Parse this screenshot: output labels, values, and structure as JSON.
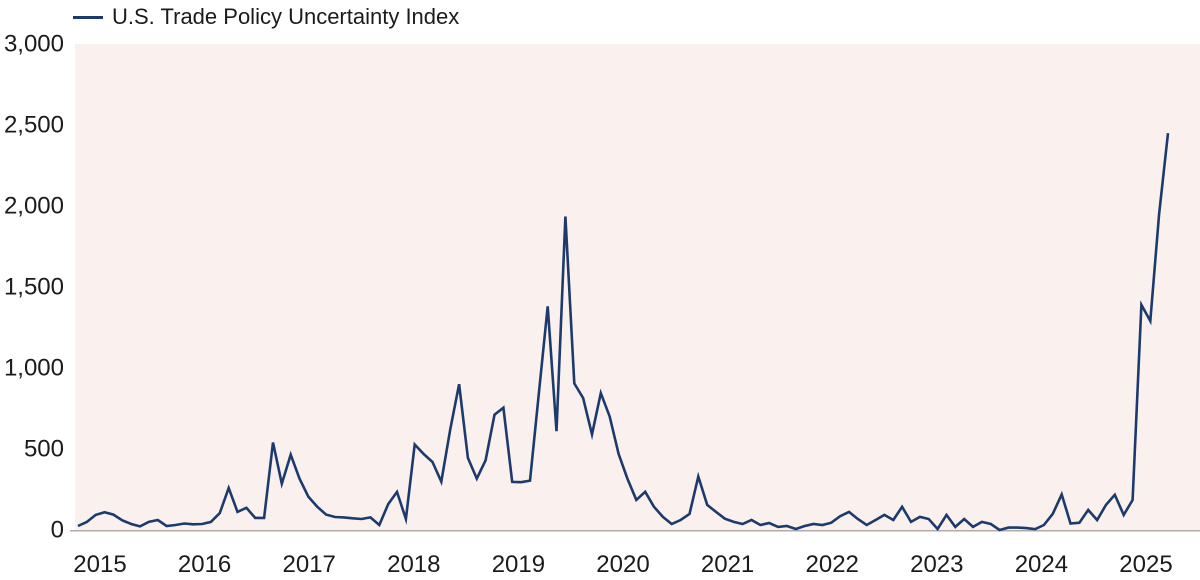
{
  "legend": {
    "label": "U.S. Trade Policy Uncertainty Index"
  },
  "colors": {
    "line": "#1d3a6d",
    "plot_background": "#faf1ef",
    "axis_line": "#b2abaa",
    "text": "#1b1b1b",
    "page_background": "#ffffff"
  },
  "chart_data": {
    "type": "line",
    "title": "U.S. Trade Policy Uncertainty Index",
    "legend_position": "top-left",
    "grid": false,
    "x_start": "2015-01",
    "x_end": "2025-04",
    "x_interval": "monthly",
    "x_tick_labels": [
      "2015",
      "2016",
      "2017",
      "2018",
      "2019",
      "2020",
      "2021",
      "2022",
      "2023",
      "2024",
      "2025"
    ],
    "y_tick_values": [
      0,
      500,
      1000,
      1500,
      2000,
      2500,
      3000
    ],
    "y_tick_labels": [
      "0",
      "500",
      "1,000",
      "1,500",
      "2,000",
      "2,500",
      "3,000"
    ],
    "ylim": [
      0,
      3000
    ],
    "series": [
      {
        "name": "U.S. Trade Policy Uncertainty Index",
        "color": "#1d3a6d",
        "values": [
          25,
          50,
          93,
          110,
          95,
          60,
          37,
          22,
          50,
          62,
          25,
          31,
          40,
          35,
          37,
          50,
          105,
          260,
          112,
          137,
          75,
          75,
          540,
          286,
          465,
          317,
          205,
          143,
          95,
          80,
          78,
          72,
          68,
          78,
          31,
          160,
          235,
          68,
          528,
          470,
          420,
          298,
          620,
          900,
          445,
          317,
          430,
          712,
          755,
          297,
          295,
          305,
          840,
          1380,
          610,
          1935,
          905,
          815,
          590,
          845,
          700,
          470,
          317,
          186,
          236,
          143,
          81,
          37,
          62,
          99,
          330,
          155,
          112,
          70,
          50,
          37,
          62,
          31,
          43,
          19,
          25,
          6,
          25,
          37,
          31,
          45,
          85,
          112,
          68,
          31,
          62,
          93,
          62,
          143,
          50,
          81,
          68,
          6,
          93,
          19,
          68,
          19,
          50,
          37,
          0,
          15,
          15,
          12,
          5,
          31,
          100,
          220,
          40,
          45,
          124,
          62,
          155,
          217,
          93,
          185,
          1390,
          1290,
          1950,
          2450
        ]
      }
    ]
  }
}
